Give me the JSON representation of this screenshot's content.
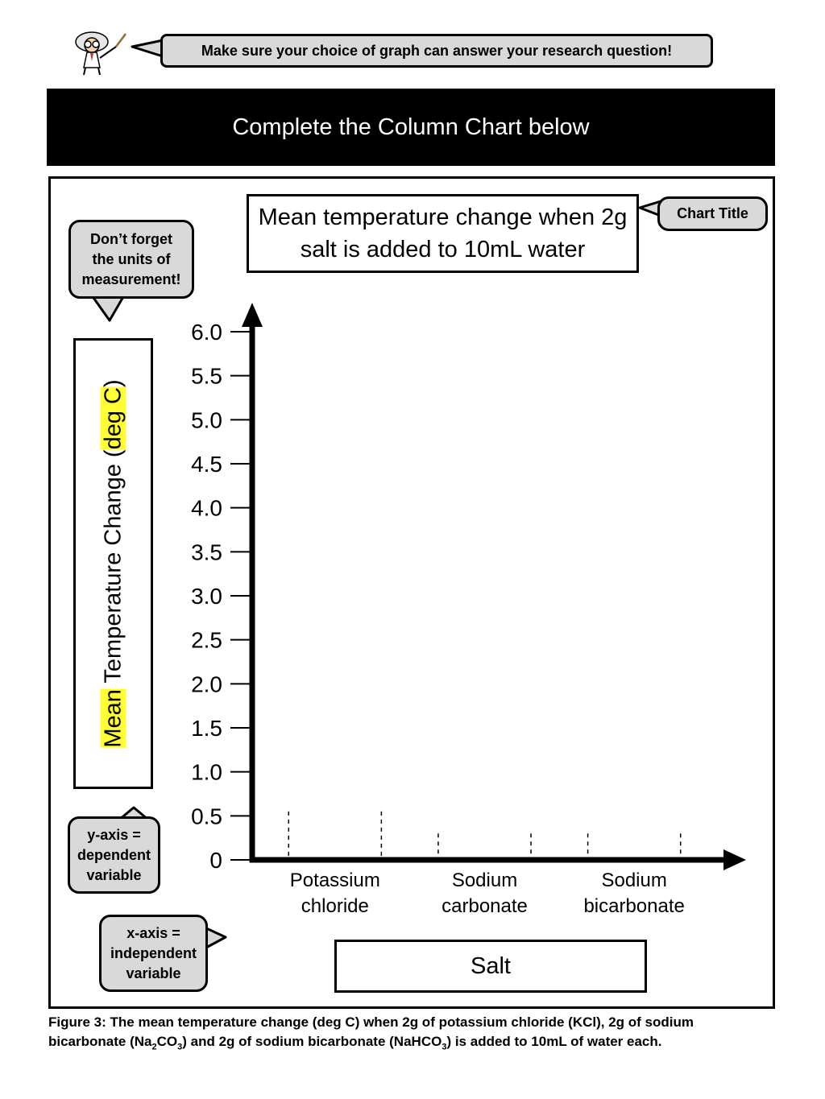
{
  "tip_text": "Make sure your choice of graph can answer your research question!",
  "header_title": "Complete the Column Chart below",
  "callouts": {
    "chart_title": "Chart Title",
    "units": [
      "Don’t forget",
      "the units of",
      "measurement!"
    ],
    "y_axis": [
      "y-axis =",
      "dependent",
      "variable"
    ],
    "x_axis": [
      "x-axis =",
      "independent",
      "variable"
    ]
  },
  "ylabel_parts": {
    "mean": "Mean",
    "middle": " Temperature Change (",
    "unit": "deg C",
    "close": ")"
  },
  "caption": {
    "part1": "Figure 3: The mean temperature change (deg C) when 2g of potassium chloride (KCl), 2g of sodium bicarbonate (Na",
    "sub1": "2",
    "part2": "CO",
    "sub2": "3",
    "part3": ") and 2g of sodium bicarbonate (NaHCO",
    "sub3": "3",
    "part4": ") is added to 10mL of water each."
  },
  "colors": {
    "highlight": "#ffff33",
    "callout_fill": "#d9d9d9",
    "header_bg": "#000000"
  },
  "chart_data": {
    "type": "bar",
    "title": "Mean temperature change when 2g salt is added to 10mL water",
    "xlabel": "Salt",
    "ylabel": "Mean Temperature Change (deg C)",
    "categories": [
      [
        "Potassium",
        "chloride"
      ],
      [
        "Sodium",
        "carbonate"
      ],
      [
        "Sodium",
        "bicarbonate"
      ]
    ],
    "values": [
      null,
      null,
      null
    ],
    "yticks": [
      "0",
      "0.5",
      "1.0",
      "1.5",
      "2.0",
      "2.5",
      "3.0",
      "3.5",
      "4.0",
      "4.5",
      "5.0",
      "5.5",
      "6.0"
    ],
    "ylim": [
      0,
      6.0
    ],
    "grid": false
  }
}
